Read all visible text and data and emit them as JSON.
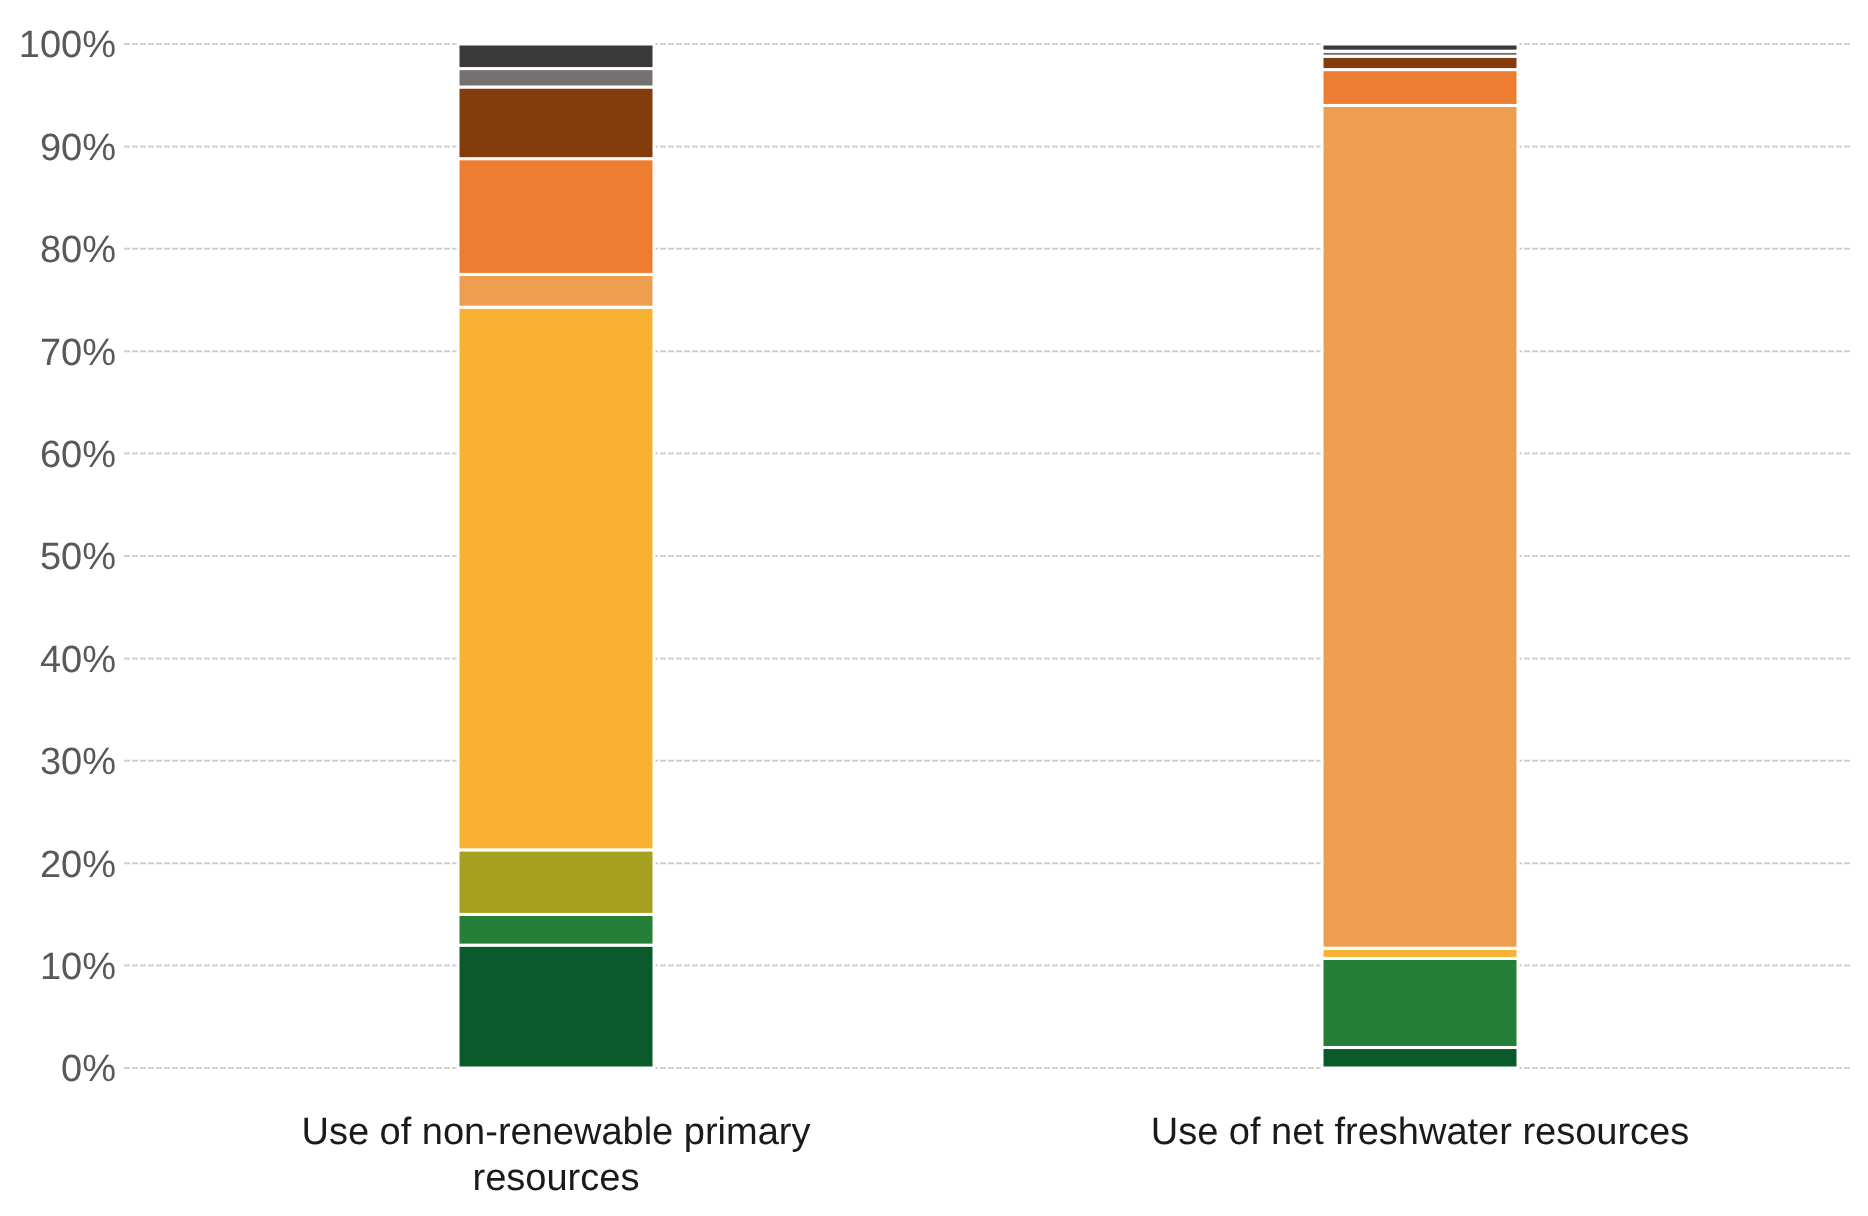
{
  "chart_data": {
    "type": "bar",
    "stacked": true,
    "categories": [
      "Use of non-renewable primary resources",
      "Use of net freshwater resources"
    ],
    "series": [
      {
        "color": "#0b5a2b",
        "values": [
          12,
          2
        ]
      },
      {
        "color": "#267f38",
        "values": [
          3,
          8.7
        ]
      },
      {
        "color": "#a6a020",
        "values": [
          6.3,
          0
        ]
      },
      {
        "color": "#f8b133",
        "values": [
          53,
          1
        ]
      },
      {
        "color": "#ed9e4e",
        "values": [
          3.2,
          82.3
        ]
      },
      {
        "color": "#ed7d31",
        "values": [
          11.3,
          3.5
        ]
      },
      {
        "color": "#843c0c",
        "values": [
          7,
          1.3
        ]
      },
      {
        "color": "#767171",
        "values": [
          1.8,
          0.5
        ]
      },
      {
        "color": "#3a3a3a",
        "values": [
          2.4,
          0.7
        ]
      }
    ],
    "ylim": [
      0,
      100
    ],
    "yticks": [
      {
        "value": 0,
        "label": "0%"
      },
      {
        "value": 10,
        "label": "10%"
      },
      {
        "value": 20,
        "label": "20%"
      },
      {
        "value": 30,
        "label": "30%"
      },
      {
        "value": 40,
        "label": "40%"
      },
      {
        "value": 50,
        "label": "50%"
      },
      {
        "value": 60,
        "label": "60%"
      },
      {
        "value": 70,
        "label": "70%"
      },
      {
        "value": 80,
        "label": "80%"
      },
      {
        "value": 90,
        "label": "90%"
      },
      {
        "value": 100,
        "label": "100%"
      }
    ],
    "grid": "y"
  }
}
